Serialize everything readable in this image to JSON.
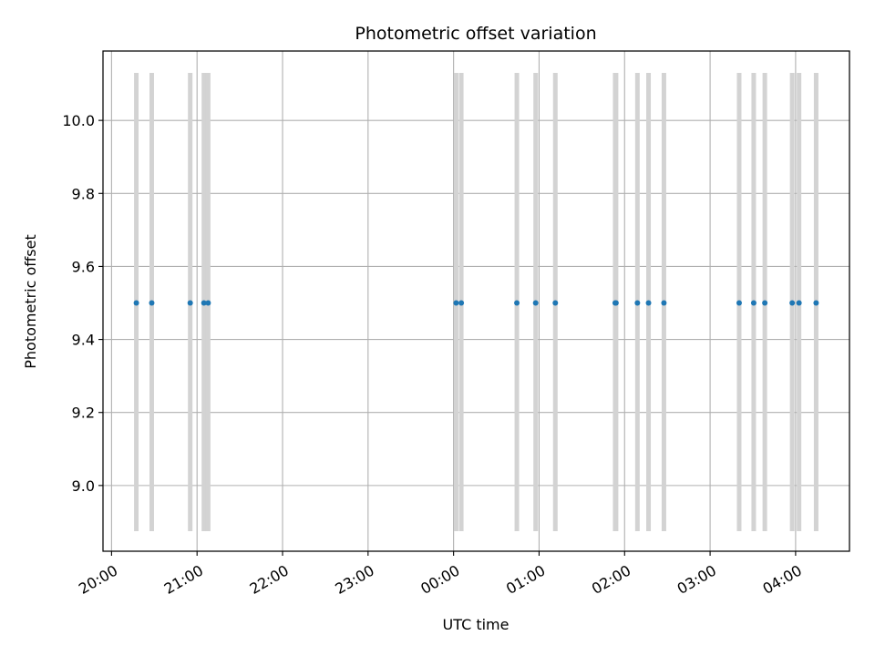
{
  "chart_data": {
    "type": "scatter",
    "title": "Photometric offset variation",
    "xlabel": "UTC time",
    "ylabel": "Photometric offset",
    "x_tick_labels": [
      "20:00",
      "21:00",
      "22:00",
      "23:00",
      "00:00",
      "01:00",
      "02:00",
      "03:00",
      "04:00"
    ],
    "x_tick_hours": [
      20,
      21,
      22,
      23,
      24,
      25,
      26,
      27,
      28
    ],
    "xlim_hours": [
      19.9,
      28.63
    ],
    "y_ticks": [
      9.0,
      9.2,
      9.4,
      9.6,
      9.8,
      10.0
    ],
    "y_tick_labels": [
      "9.0",
      "9.2",
      "9.4",
      "9.6",
      "9.8",
      "10.0"
    ],
    "ylim": [
      8.82,
      10.19
    ],
    "grid": true,
    "point_color": "#1f77b4",
    "errorbar_color": "#d3d3d3",
    "errorbar_range": [
      8.875,
      10.13
    ],
    "points": [
      {
        "time": "20:17",
        "hour": 20.29,
        "value": 9.5
      },
      {
        "time": "20:28",
        "hour": 20.47,
        "value": 9.5
      },
      {
        "time": "20:55",
        "hour": 20.92,
        "value": 9.5
      },
      {
        "time": "21:05",
        "hour": 21.08,
        "value": 9.5
      },
      {
        "time": "21:08",
        "hour": 21.13,
        "value": 9.5
      },
      {
        "time": "00:02",
        "hour": 24.03,
        "value": 9.5
      },
      {
        "time": "00:05",
        "hour": 24.09,
        "value": 9.5
      },
      {
        "time": "00:44",
        "hour": 24.74,
        "value": 9.5
      },
      {
        "time": "00:57",
        "hour": 24.96,
        "value": 9.5
      },
      {
        "time": "01:11",
        "hour": 25.19,
        "value": 9.5
      },
      {
        "time": "01:53",
        "hour": 25.89,
        "value": 9.5
      },
      {
        "time": "01:54",
        "hour": 25.9,
        "value": 9.5
      },
      {
        "time": "02:09",
        "hour": 26.15,
        "value": 9.5
      },
      {
        "time": "02:17",
        "hour": 26.28,
        "value": 9.5
      },
      {
        "time": "02:28",
        "hour": 26.46,
        "value": 9.5
      },
      {
        "time": "03:20",
        "hour": 27.34,
        "value": 9.5
      },
      {
        "time": "03:31",
        "hour": 27.51,
        "value": 9.5
      },
      {
        "time": "03:38",
        "hour": 27.64,
        "value": 9.5
      },
      {
        "time": "03:58",
        "hour": 27.96,
        "value": 9.5
      },
      {
        "time": "04:02",
        "hour": 28.04,
        "value": 9.5
      },
      {
        "time": "04:14",
        "hour": 28.24,
        "value": 9.5
      }
    ]
  }
}
